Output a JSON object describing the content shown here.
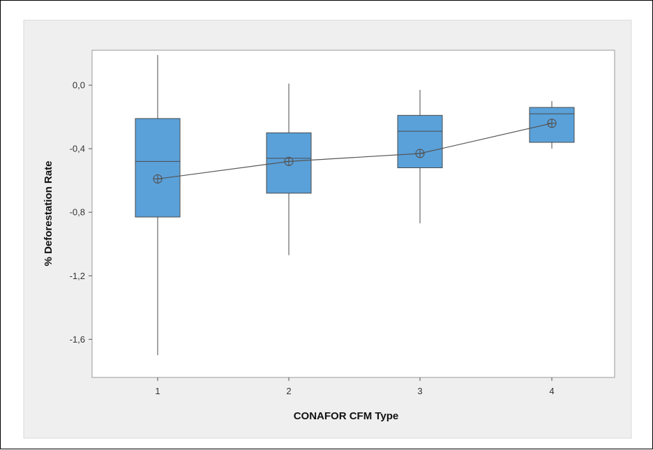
{
  "chart_data": {
    "type": "boxplot",
    "title": "",
    "xlabel": "CONAFOR CFM Type",
    "ylabel": "% Deforestation Rate",
    "categories": [
      "1",
      "2",
      "3",
      "4"
    ],
    "yticks": [
      "0,0",
      "-0,4",
      "-0,8",
      "-1,2",
      "-1,6"
    ],
    "ytick_values": [
      0.0,
      -0.4,
      -0.8,
      -1.2,
      -1.6
    ],
    "ylim": [
      -1.84,
      0.22
    ],
    "boxes": [
      {
        "category": "1",
        "whisker_low": -1.7,
        "q1": -0.83,
        "median": -0.48,
        "q3": -0.21,
        "whisker_high": 0.19,
        "mean": -0.59
      },
      {
        "category": "2",
        "whisker_low": -1.07,
        "q1": -0.68,
        "median": -0.46,
        "q3": -0.3,
        "whisker_high": 0.01,
        "mean": -0.48
      },
      {
        "category": "3",
        "whisker_low": -0.87,
        "q1": -0.52,
        "median": -0.29,
        "q3": -0.19,
        "whisker_high": -0.03,
        "mean": -0.43
      },
      {
        "category": "4",
        "whisker_low": -0.4,
        "q1": -0.36,
        "median": -0.18,
        "q3": -0.14,
        "whisker_high": -0.1,
        "mean": -0.24
      }
    ],
    "mean_connect_line": true,
    "grid": false,
    "colors": {
      "box_fill": "#5aa1da",
      "box_stroke": "#4a4a4a",
      "line": "#555555",
      "plot_outer_bg": "#efefef",
      "plot_bg": "#ffffff"
    }
  }
}
